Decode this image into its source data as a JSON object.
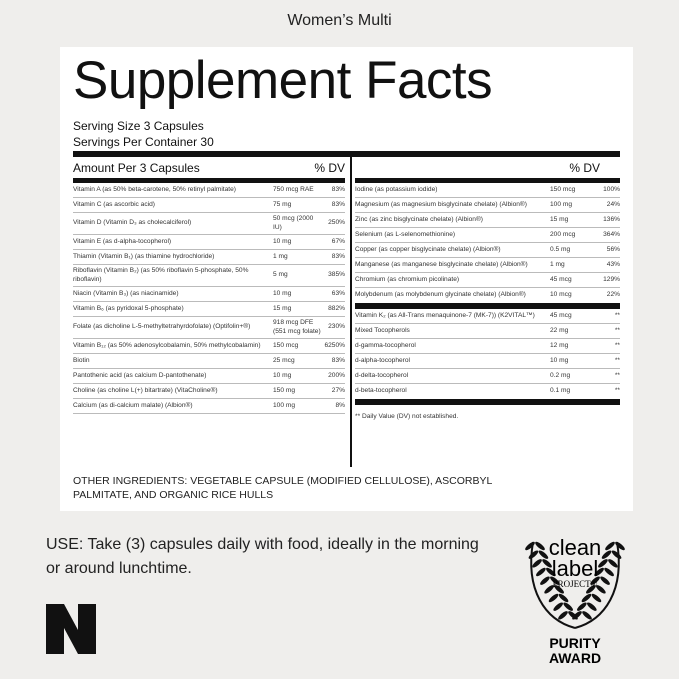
{
  "product": "Women’s Multi",
  "title": "Supplement Facts",
  "serving_size_label": "Serving Size",
  "serving_size": "3 Capsules",
  "servings_label": "Servings Per Container",
  "servings": "30",
  "left_header": {
    "amount": "Amount Per 3 Capsules",
    "dv": "% DV"
  },
  "right_header": {
    "dv": "% DV"
  },
  "left_rows": [
    [
      "Vitamin A (as 50% beta-carotene, 50% retinyl palmitate)",
      "750 mcg RAE",
      "83%"
    ],
    [
      "Vitamin C (as ascorbic acid)",
      "75 mg",
      "83%"
    ],
    [
      "Vitamin D (Vitamin D₃ as cholecalciferol)",
      "50 mcg (2000 IU)",
      "250%"
    ],
    [
      "Vitamin E (as d-alpha-tocopherol)",
      "10 mg",
      "67%"
    ],
    [
      "Thiamin (Vitamin B₁) (as thiamine hydrochloride)",
      "1 mg",
      "83%"
    ],
    [
      "Riboflavin (Vitamin B₂) (as 50% riboflavin 5-phosphate, 50% riboflavin)",
      "5 mg",
      "385%"
    ],
    [
      "Niacin (Vitamin B₃) (as niacinamide)",
      "10 mg",
      "63%"
    ],
    [
      "Vitamin B₆ (as pyridoxal 5-phosphate)",
      "15 mg",
      "882%"
    ],
    [
      "Folate (as dicholine L-5-methyltetrahyrdofolate) (Optifolin+®)",
      "918 mcg DFE (551 mcg folate)",
      "230%"
    ],
    [
      "Vitamin B₁₂ (as 50% adenosylcobalamin, 50% methylcobalamin)",
      "150 mcg",
      "6250%"
    ],
    [
      "Biotin",
      "25 mcg",
      "83%"
    ],
    [
      "Pantothenic acid (as calcium D-pantothenate)",
      "10 mg",
      "200%"
    ],
    [
      "Choline (as choline L(+) bitartrate) (VitaCholine®)",
      "150 mg",
      "27%"
    ],
    [
      "Calcium (as di-calcium malate) (Albion®)",
      "100 mg",
      "8%"
    ]
  ],
  "right_rows": [
    [
      "Iodine (as potassium iodide)",
      "150 mcg",
      "100%"
    ],
    [
      "Magnesium (as magnesium bisglycinate chelate) (Albion®)",
      "100 mg",
      "24%"
    ],
    [
      "Zinc (as zinc bisglycinate chelate) (Albion®)",
      "15 mg",
      "136%"
    ],
    [
      "Selenium (as L-selenomethionine)",
      "200 mcg",
      "364%"
    ],
    [
      "Copper (as copper bisglycinate chelate) (Albion®)",
      "0.5 mg",
      "56%"
    ],
    [
      "Manganese (as manganese bisglycinate chelate) (Albion®)",
      "1 mg",
      "43%"
    ],
    [
      "Chromium (as chromium picolinate)",
      "45 mcg",
      "129%"
    ],
    [
      "Molybdenum (as molybdenum glycinate chelate) (Albion®)",
      "10 mcg",
      "22%"
    ]
  ],
  "right_rows2": [
    [
      "Vitamin K₂ (as All-Trans menaquinone-7 (MK-7)) (K2VITAL™)",
      "45 mcg",
      "**"
    ],
    [
      "Mixed Tocopherols",
      "22 mg",
      "**"
    ],
    [
      "d-gamma-tocopherol",
      "12 mg",
      "**"
    ],
    [
      "d-alpha-tocopherol",
      "10 mg",
      "**"
    ],
    [
      "d-delta-tocopherol",
      "0.2 mg",
      "**"
    ],
    [
      "d-beta-tocopherol",
      "0.1 mg",
      "**"
    ]
  ],
  "footnote": "** Daily Value (DV) not established.",
  "other_ingredients": "OTHER INGREDIENTS: VEGETABLE CAPSULE (MODIFIED CELLULOSE), ASCORBYL PALMITATE, AND ORGANIC RICE HULLS",
  "use": "USE: Take (3) capsules daily with food, ideally in the morning or around lunchtime.",
  "award": {
    "line1": "clean",
    "line2": "label",
    "line3": "PROJECT®",
    "line4": "PURITY",
    "line5": "AWARD"
  },
  "brand_logo": "N"
}
